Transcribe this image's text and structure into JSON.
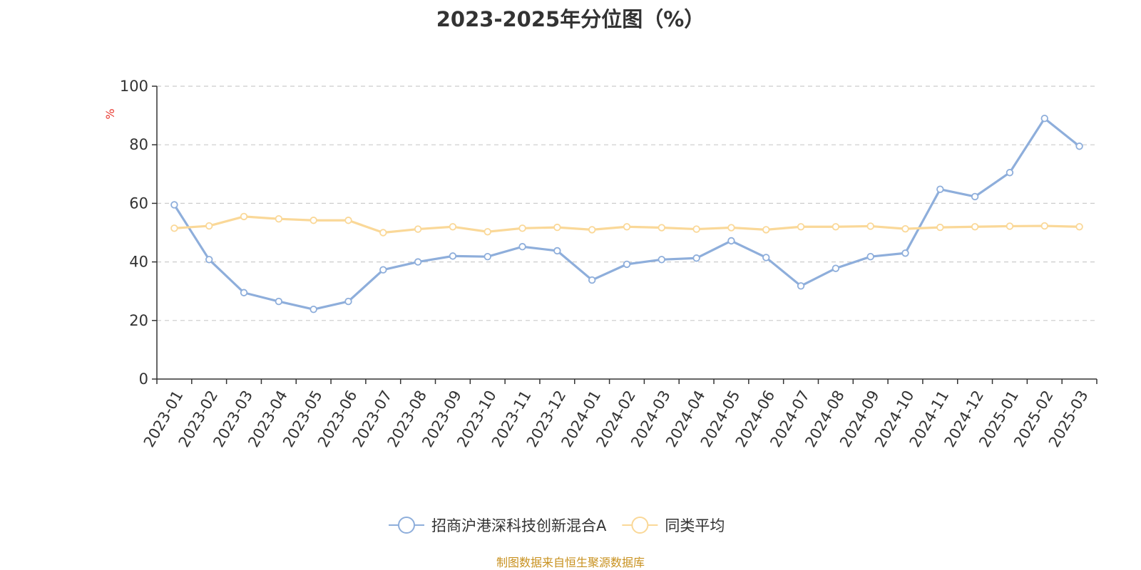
{
  "chart_data": {
    "type": "line",
    "title": "2023-2025年分位图（%）",
    "ylabel": "%",
    "xlabel": "",
    "ylim": [
      0,
      100
    ],
    "yticks": [
      0,
      20,
      40,
      60,
      80,
      100
    ],
    "grid": true,
    "legend_position": "bottom",
    "categories": [
      "2023-01",
      "2023-02",
      "2023-03",
      "2023-04",
      "2023-05",
      "2023-06",
      "2023-07",
      "2023-08",
      "2023-09",
      "2023-10",
      "2023-11",
      "2023-12",
      "2024-01",
      "2024-02",
      "2024-03",
      "2024-04",
      "2024-05",
      "2024-06",
      "2024-07",
      "2024-08",
      "2024-09",
      "2024-10",
      "2024-11",
      "2024-12",
      "2025-01",
      "2025-02",
      "2025-03"
    ],
    "series": [
      {
        "name": "招商沪港深科技创新混合A",
        "color": "#8eaedb",
        "values": [
          59.5,
          40.8,
          29.5,
          26.5,
          23.8,
          26.5,
          37.3,
          40.0,
          42.0,
          41.8,
          45.2,
          43.8,
          33.8,
          39.2,
          40.8,
          41.3,
          47.2,
          41.5,
          31.8,
          37.8,
          41.8,
          43.0,
          64.8,
          62.3,
          70.5,
          89.0,
          79.5
        ]
      },
      {
        "name": "同类平均",
        "color": "#fad898",
        "values": [
          51.5,
          52.3,
          55.5,
          54.7,
          54.2,
          54.2,
          50.0,
          51.2,
          52.0,
          50.3,
          51.5,
          51.8,
          51.0,
          52.0,
          51.7,
          51.2,
          51.7,
          51.0,
          52.0,
          52.0,
          52.2,
          51.3,
          51.8,
          52.0,
          52.2,
          52.3,
          52.0
        ]
      }
    ]
  },
  "footer": {
    "source": "制图数据来自恒生聚源数据库"
  }
}
